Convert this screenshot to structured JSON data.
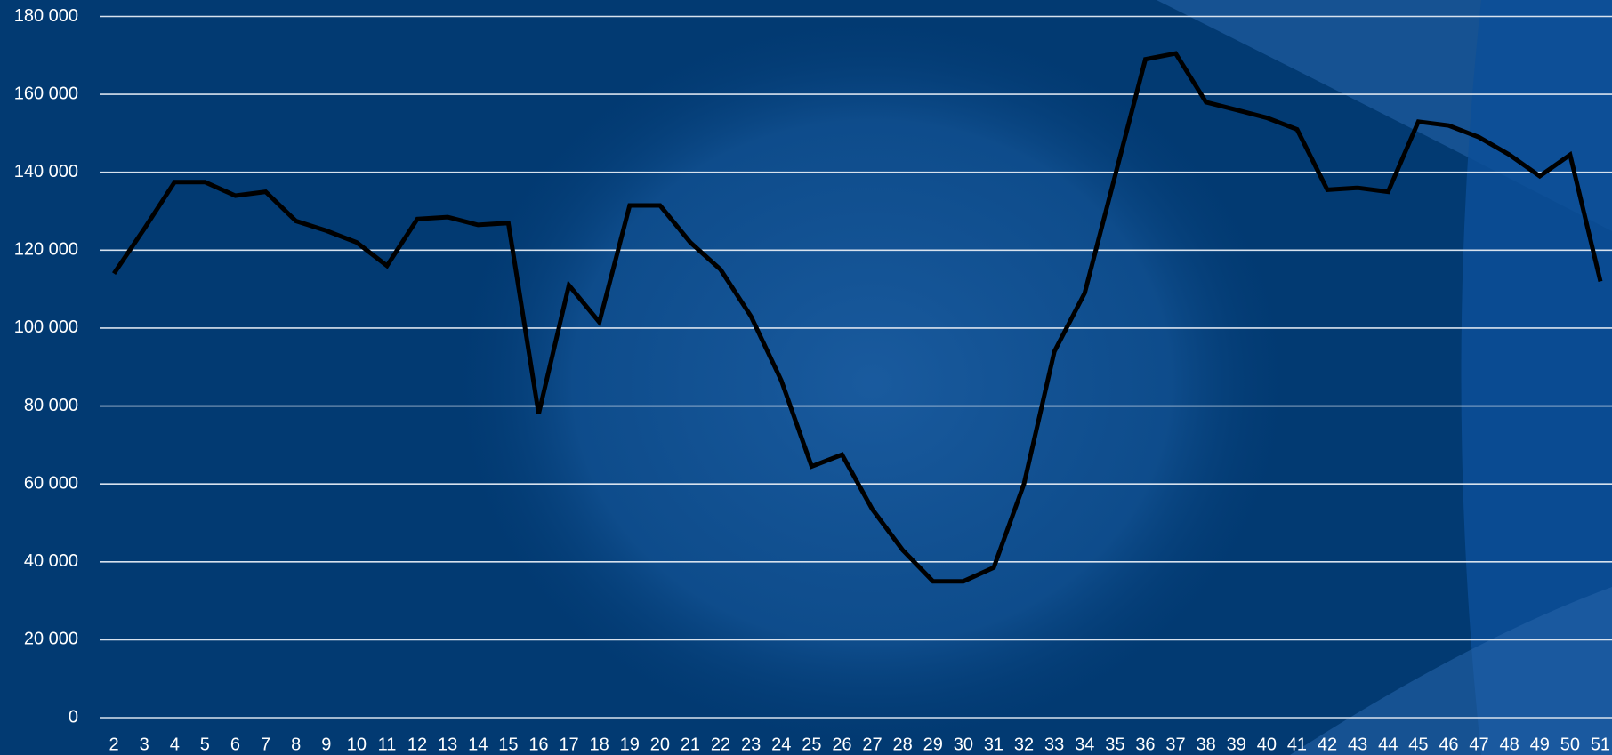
{
  "chart_data": {
    "type": "line",
    "categories": [
      "2",
      "3",
      "4",
      "5",
      "6",
      "7",
      "8",
      "9",
      "10",
      "11",
      "12",
      "13",
      "14",
      "15",
      "16",
      "17",
      "18",
      "19",
      "20",
      "21",
      "22",
      "23",
      "24",
      "25",
      "26",
      "27",
      "28",
      "29",
      "30",
      "31",
      "32",
      "33",
      "34",
      "35",
      "36",
      "37",
      "38",
      "39",
      "40",
      "41",
      "42",
      "43",
      "44",
      "45",
      "46",
      "47",
      "48",
      "49",
      "50",
      "51"
    ],
    "values": [
      114000,
      125500,
      137500,
      137500,
      134000,
      135000,
      127500,
      125000,
      122000,
      116000,
      128000,
      128500,
      126500,
      127000,
      78000,
      111000,
      101500,
      131500,
      131500,
      122000,
      115000,
      103000,
      86500,
      64500,
      67500,
      53500,
      43000,
      35000,
      35000,
      38500,
      60000,
      94000,
      109000,
      139000,
      169000,
      170500,
      158000,
      156000,
      154000,
      151000,
      135500,
      136000,
      135000,
      153000,
      152000,
      149000,
      144500,
      139000,
      144500,
      112000
    ],
    "color": "#000000",
    "ylim": [
      0,
      180000
    ],
    "yticks": [
      {
        "value": 0,
        "label": "0"
      },
      {
        "value": 20000,
        "label": "20 000"
      },
      {
        "value": 40000,
        "label": "40 000"
      },
      {
        "value": 60000,
        "label": "60 000"
      },
      {
        "value": 80000,
        "label": "80 000"
      },
      {
        "value": 100000,
        "label": "100 000"
      },
      {
        "value": 120000,
        "label": "120 000"
      },
      {
        "value": 140000,
        "label": "140 000"
      },
      {
        "value": 160000,
        "label": "160 000"
      },
      {
        "value": 180000,
        "label": "180 000"
      }
    ],
    "grid": true
  }
}
